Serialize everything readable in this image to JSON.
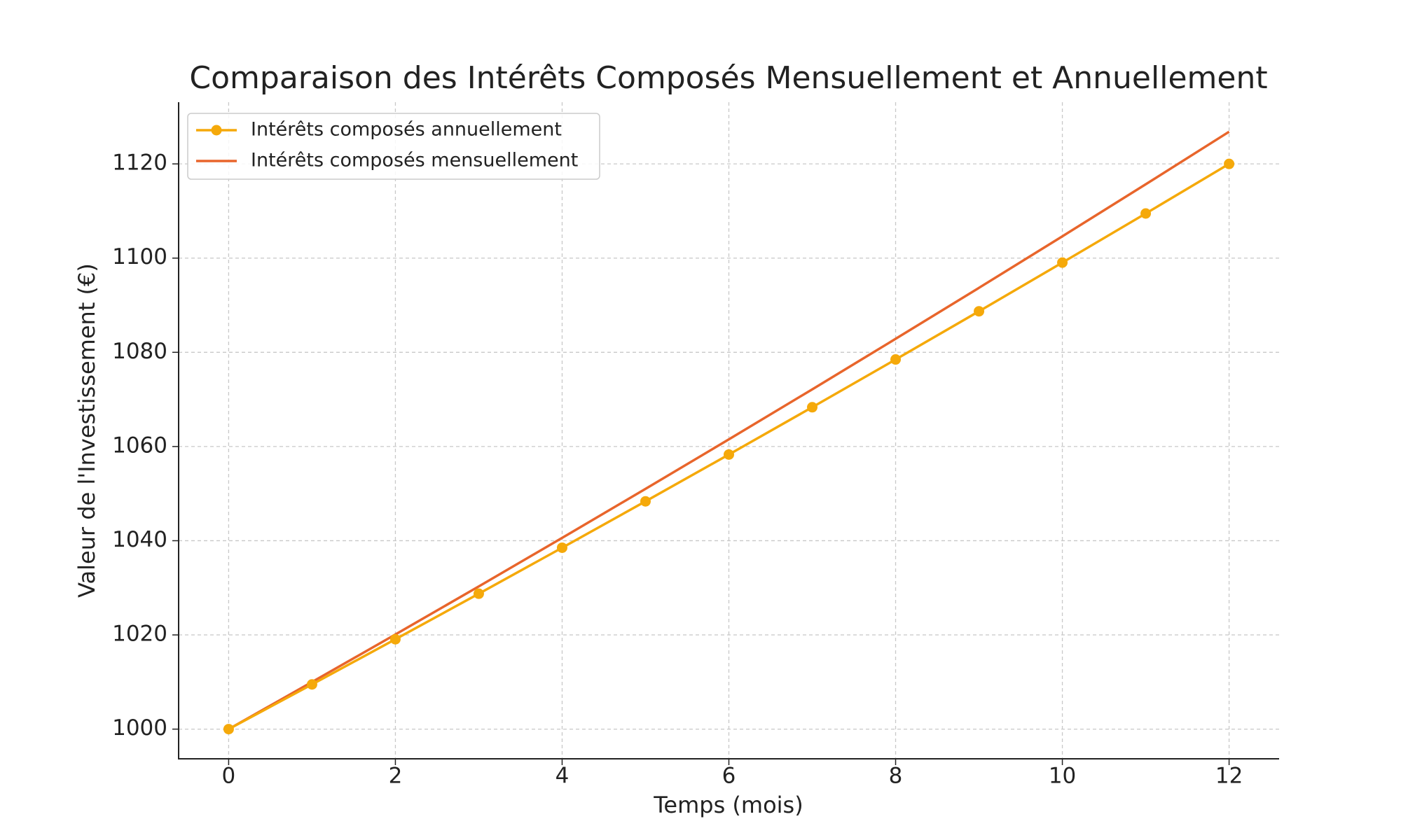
{
  "chart_data": {
    "type": "line",
    "title": "Comparaison des Intérêts Composés Mensuellement et Annuellement",
    "x_label": "Temps (mois)",
    "y_label": "Valeur de l'Investissement (€)",
    "x": [
      0,
      1,
      2,
      3,
      4,
      5,
      6,
      7,
      8,
      9,
      10,
      11,
      12
    ],
    "series": [
      {
        "name": "Intérêts composés annuellement",
        "color": "#f5a90a",
        "marker": true,
        "values": [
          1000,
          1009.49,
          1019.08,
          1028.75,
          1038.51,
          1048.36,
          1058.3,
          1068.34,
          1078.48,
          1088.71,
          1099.05,
          1109.47,
          1120.0
        ]
      },
      {
        "name": "Intérêts composés mensuellement",
        "color": "#e8652b",
        "marker": false,
        "values": [
          1000,
          1010.0,
          1020.1,
          1030.3,
          1040.6,
          1051.01,
          1061.52,
          1072.14,
          1082.86,
          1093.69,
          1104.62,
          1115.67,
          1126.83
        ]
      }
    ],
    "xlim": [
      -0.6,
      12.6
    ],
    "xticks": [
      0,
      2,
      4,
      6,
      8,
      10,
      12
    ],
    "ylim": [
      993.7,
      1133.1
    ],
    "yticks": [
      1000,
      1020,
      1040,
      1060,
      1080,
      1100,
      1120
    ],
    "grid": true,
    "legend": "upper left"
  }
}
